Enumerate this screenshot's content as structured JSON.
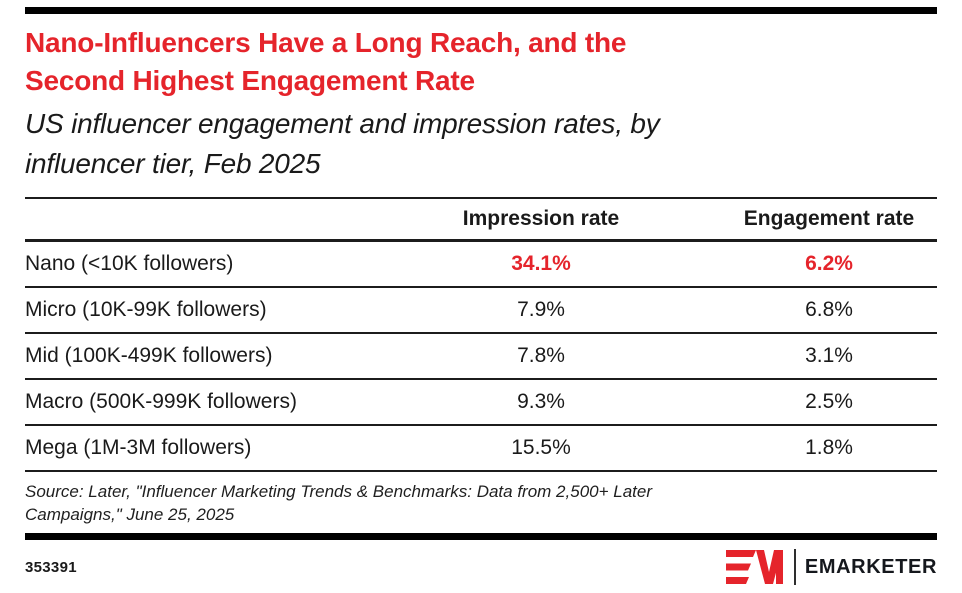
{
  "page": {
    "accent_red": "#E5242B",
    "text_color": "#1A1A1A"
  },
  "header": {
    "title_lines": [
      "Nano-Influencers Have a Long Reach, and the",
      "Second Highest Engagement Rate"
    ],
    "subtitle_lines": [
      "US influencer engagement and impression rates, by",
      "influencer tier, Feb 2025"
    ]
  },
  "chart_data": {
    "type": "table",
    "title": "Nano-Influencers Have a Long Reach, and the Second Highest Engagement Rate",
    "subtitle": "US influencer engagement and impression rates, by influencer tier, Feb 2025",
    "columns": [
      "",
      "Impression rate",
      "Engagement rate"
    ],
    "rows": [
      {
        "tier": "Nano (<10K followers)",
        "impression_rate": "34.1%",
        "engagement_rate": "6.2%",
        "highlight": true
      },
      {
        "tier": "Micro (10K-99K followers)",
        "impression_rate": "7.9%",
        "engagement_rate": "6.8%",
        "highlight": false
      },
      {
        "tier": "Mid (100K-499K followers)",
        "impression_rate": "7.8%",
        "engagement_rate": "3.1%",
        "highlight": false
      },
      {
        "tier": "Macro (500K-999K followers)",
        "impression_rate": "9.3%",
        "engagement_rate": "2.5%",
        "highlight": false
      },
      {
        "tier": "Mega (1M-3M followers)",
        "impression_rate": "15.5%",
        "engagement_rate": "1.8%",
        "highlight": false
      }
    ],
    "highlight_color": "#E5242B",
    "value_unit": "%"
  },
  "source": {
    "lines": [
      "Source: Later, \"Influencer Marketing Trends & Benchmarks: Data from 2,500+ Later",
      "Campaigns,\" June 25, 2025"
    ]
  },
  "footer": {
    "chart_id": "353391",
    "brand_name": "EMARKETER"
  }
}
